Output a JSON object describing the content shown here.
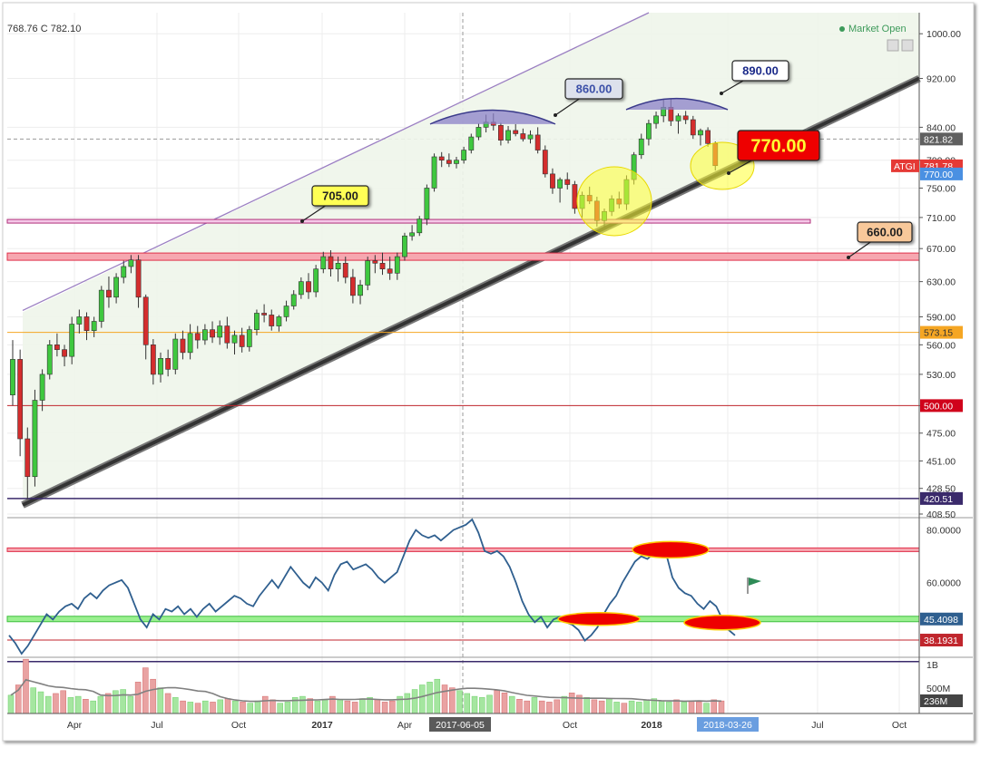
{
  "header": {
    "ohlc_text": "768.76 C 782.10",
    "market_status": "Market Open"
  },
  "colors": {
    "up": "#3fc83f",
    "down": "#d42d2d",
    "channel_fill": "#eef5ea",
    "trendline": "#333333",
    "rsi_line": "#2f5f8f",
    "volume_ma": "#808080"
  },
  "chart_data": [
    {
      "type": "candlestick",
      "symbol": "ATGI",
      "x_tick_labels": [
        "Apr",
        "Jul",
        "Oct",
        "2017",
        "Apr",
        "2017-06-05",
        "Oct",
        "2018",
        "2018-03-26",
        "Jul",
        "Oct"
      ],
      "y_tick_labels": [
        "1000.00",
        "920.00",
        "840.00",
        "790.00",
        "750.00",
        "710.00",
        "670.00",
        "630.00",
        "590.00",
        "560.00",
        "530.00",
        "500.00",
        "475.00",
        "451.00",
        "428.50",
        "408.50"
      ],
      "price_scale": "log",
      "ylim": [
        408.5,
        1040
      ],
      "ohlc": [
        [
          510,
          565,
          500,
          545
        ],
        [
          545,
          555,
          455,
          470
        ],
        [
          470,
          480,
          420,
          438
        ],
        [
          438,
          515,
          430,
          505
        ],
        [
          505,
          535,
          495,
          530
        ],
        [
          530,
          565,
          525,
          560
        ],
        [
          560,
          572,
          548,
          555
        ],
        [
          555,
          560,
          538,
          548
        ],
        [
          548,
          590,
          540,
          582
        ],
        [
          582,
          598,
          572,
          590
        ],
        [
          590,
          595,
          565,
          575
        ],
        [
          575,
          590,
          568,
          585
        ],
        [
          585,
          625,
          578,
          620
        ],
        [
          620,
          636,
          600,
          612
        ],
        [
          612,
          640,
          605,
          635
        ],
        [
          635,
          655,
          628,
          648
        ],
        [
          648,
          662,
          640,
          656
        ],
        [
          656,
          662,
          600,
          612
        ],
        [
          612,
          615,
          545,
          560
        ],
        [
          560,
          566,
          520,
          530
        ],
        [
          530,
          552,
          522,
          546
        ],
        [
          546,
          555,
          528,
          535
        ],
        [
          535,
          572,
          530,
          566
        ],
        [
          566,
          575,
          545,
          552
        ],
        [
          552,
          582,
          545,
          572
        ],
        [
          572,
          580,
          556,
          565
        ],
        [
          565,
          582,
          560,
          576
        ],
        [
          576,
          585,
          562,
          568
        ],
        [
          568,
          586,
          560,
          580
        ],
        [
          580,
          590,
          556,
          562
        ],
        [
          562,
          575,
          550,
          570
        ],
        [
          570,
          578,
          552,
          558
        ],
        [
          558,
          580,
          553,
          576
        ],
        [
          576,
          598,
          570,
          594
        ],
        [
          594,
          604,
          584,
          592
        ],
        [
          592,
          598,
          575,
          580
        ],
        [
          580,
          592,
          574,
          590
        ],
        [
          590,
          608,
          585,
          602
        ],
        [
          602,
          620,
          598,
          615
        ],
        [
          615,
          635,
          610,
          630
        ],
        [
          630,
          640,
          610,
          618
        ],
        [
          618,
          650,
          612,
          645
        ],
        [
          645,
          666,
          640,
          660
        ],
        [
          660,
          668,
          636,
          645
        ],
        [
          645,
          660,
          630,
          652
        ],
        [
          652,
          660,
          628,
          635
        ],
        [
          635,
          645,
          605,
          614
        ],
        [
          614,
          632,
          604,
          626
        ],
        [
          626,
          660,
          620,
          655
        ],
        [
          655,
          662,
          640,
          652
        ],
        [
          652,
          665,
          638,
          645
        ],
        [
          645,
          660,
          632,
          640
        ],
        [
          640,
          665,
          632,
          660
        ],
        [
          660,
          690,
          655,
          686
        ],
        [
          686,
          700,
          680,
          690
        ],
        [
          690,
          712,
          686,
          708
        ],
        [
          708,
          755,
          700,
          750
        ],
        [
          750,
          800,
          745,
          795
        ],
        [
          795,
          802,
          780,
          790
        ],
        [
          790,
          800,
          780,
          785
        ],
        [
          785,
          795,
          778,
          790
        ],
        [
          790,
          810,
          785,
          805
        ],
        [
          805,
          830,
          800,
          825
        ],
        [
          825,
          846,
          820,
          840
        ],
        [
          840,
          860,
          832,
          848
        ],
        [
          848,
          862,
          835,
          843
        ],
        [
          843,
          847,
          812,
          820
        ],
        [
          820,
          842,
          815,
          835
        ],
        [
          835,
          845,
          826,
          830
        ],
        [
          830,
          838,
          818,
          822
        ],
        [
          822,
          835,
          815,
          828
        ],
        [
          828,
          840,
          800,
          805
        ],
        [
          805,
          812,
          765,
          770
        ],
        [
          770,
          778,
          742,
          750
        ],
        [
          750,
          765,
          730,
          762
        ],
        [
          762,
          772,
          748,
          755
        ],
        [
          755,
          760,
          715,
          722
        ],
        [
          722,
          745,
          710,
          740
        ],
        [
          740,
          752,
          728,
          732
        ],
        [
          732,
          738,
          698,
          706
        ],
        [
          706,
          722,
          698,
          718
        ],
        [
          718,
          740,
          712,
          735
        ],
        [
          735,
          745,
          722,
          728
        ],
        [
          728,
          768,
          720,
          762
        ],
        [
          762,
          802,
          755,
          798
        ],
        [
          798,
          830,
          792,
          822
        ],
        [
          822,
          852,
          812,
          846
        ],
        [
          846,
          865,
          838,
          858
        ],
        [
          858,
          885,
          848,
          872
        ],
        [
          872,
          885,
          842,
          850
        ],
        [
          850,
          862,
          830,
          858
        ],
        [
          858,
          866,
          845,
          852
        ],
        [
          852,
          858,
          822,
          828
        ],
        [
          828,
          838,
          812,
          835
        ],
        [
          835,
          840,
          810,
          815
        ],
        [
          815,
          818,
          775,
          782
        ]
      ],
      "annotations": [
        "705.00",
        "860.00",
        "890.00",
        "770.00",
        "660.00"
      ],
      "price_labels": [
        {
          "text": "821.82",
          "color": "#5f5f5f"
        },
        {
          "text": "ATGI",
          "color": "#e53935"
        },
        {
          "text": "781.78",
          "color": "#e53935"
        },
        {
          "text": "770.00",
          "color": "#4a90e2"
        },
        {
          "text": "573.15",
          "color": "#f5a623"
        },
        {
          "text": "500.00",
          "color": "#d0021b"
        },
        {
          "text": "420.51",
          "color": "#3a2a6b"
        }
      ],
      "levels": [
        705,
        660,
        573.15,
        500,
        420.51,
        821.82
      ]
    },
    {
      "type": "line",
      "name": "RSI",
      "y_tick_labels": [
        "80.0000",
        "60.0000",
        "45.4098",
        "38.1931"
      ],
      "ylim": [
        32,
        84
      ],
      "values": [
        40,
        37,
        33,
        36,
        40,
        44,
        48,
        46,
        49,
        51,
        52,
        50,
        54,
        56,
        54,
        57,
        59,
        60,
        61,
        58,
        52,
        46,
        43,
        48,
        46,
        50,
        49,
        51,
        48,
        50,
        47,
        50,
        52,
        49,
        51,
        53,
        55,
        54,
        52,
        51,
        55,
        58,
        61,
        58,
        62,
        66,
        63,
        60,
        58,
        62,
        60,
        57,
        63,
        67,
        68,
        65,
        66,
        67,
        65,
        62,
        60,
        62,
        64,
        70,
        76,
        80,
        78,
        77,
        78,
        76,
        78,
        80,
        81,
        82,
        84,
        79,
        72,
        71,
        72,
        70,
        66,
        60,
        53,
        48,
        45,
        47,
        43,
        46,
        47,
        45,
        44,
        42,
        38,
        40,
        43,
        48,
        52,
        55,
        60,
        64,
        68,
        70,
        69,
        71,
        74,
        71,
        62,
        58,
        56,
        55,
        52,
        50,
        53,
        51,
        46,
        42,
        40
      ],
      "levels": [
        72.5,
        46.2,
        38.19,
        30
      ]
    },
    {
      "type": "bar",
      "name": "Volume",
      "y_tick_labels": [
        "1B",
        "500M",
        "236M"
      ],
      "values": [
        0.32,
        0.5,
        0.95,
        0.45,
        0.38,
        0.3,
        0.35,
        0.4,
        0.28,
        0.3,
        0.25,
        0.22,
        0.3,
        0.35,
        0.4,
        0.42,
        0.3,
        0.55,
        0.8,
        0.6,
        0.45,
        0.35,
        0.28,
        0.22,
        0.2,
        0.18,
        0.22,
        0.2,
        0.24,
        0.26,
        0.22,
        0.2,
        0.18,
        0.22,
        0.3,
        0.24,
        0.18,
        0.2,
        0.28,
        0.3,
        0.26,
        0.22,
        0.24,
        0.3,
        0.24,
        0.22,
        0.2,
        0.26,
        0.28,
        0.24,
        0.2,
        0.22,
        0.3,
        0.35,
        0.42,
        0.5,
        0.55,
        0.6,
        0.5,
        0.45,
        0.4,
        0.35,
        0.3,
        0.28,
        0.32,
        0.4,
        0.36,
        0.3,
        0.25,
        0.22,
        0.28,
        0.22,
        0.2,
        0.24,
        0.3,
        0.36,
        0.32,
        0.28,
        0.24,
        0.22,
        0.26,
        0.2,
        0.18,
        0.22,
        0.2,
        0.24,
        0.26,
        0.22,
        0.2,
        0.24,
        0.2,
        0.22,
        0.2,
        0.18,
        0.24,
        0.22
      ]
    }
  ]
}
